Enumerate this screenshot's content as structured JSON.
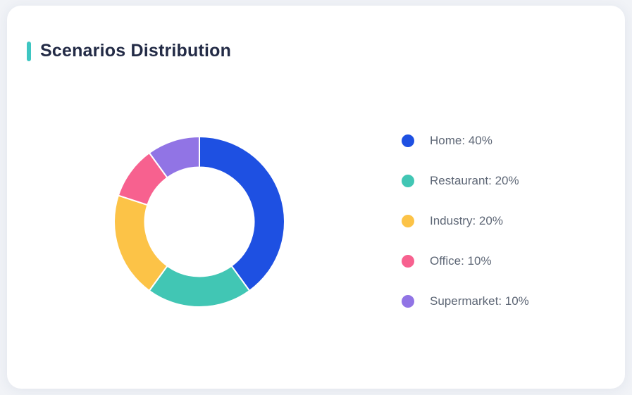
{
  "page": {
    "background_color": "#F1F3F7"
  },
  "card": {
    "background_color": "#FFFFFF",
    "accent_bar_color": "#3EC6C2",
    "title": "Scenarios Distribution",
    "title_color": "#232B46"
  },
  "chart_data": {
    "type": "pie",
    "subtype": "donut",
    "title": "Scenarios Distribution",
    "categories": [
      "Home",
      "Restaurant",
      "Industry",
      "Office",
      "Supermarket"
    ],
    "values": [
      40,
      20,
      20,
      10,
      10
    ],
    "unit": "%",
    "colors": [
      "#1E50E2",
      "#41C6B4",
      "#FCC347",
      "#F7618F",
      "#9174E5"
    ],
    "start_angle_deg": 0,
    "direction": "clockwise",
    "inner_radius_ratio": 0.64,
    "segment_gap_color": "#FFFFFF",
    "legend_position": "right",
    "legend_text_color": "#5E6776",
    "legend": [
      {
        "label": "Home: 40%",
        "color": "#1E50E2"
      },
      {
        "label": "Restaurant: 20%",
        "color": "#41C6B4"
      },
      {
        "label": "Industry: 20%",
        "color": "#FCC347"
      },
      {
        "label": "Office: 10%",
        "color": "#F7618F"
      },
      {
        "label": "Supermarket: 10%",
        "color": "#9174E5"
      }
    ]
  }
}
